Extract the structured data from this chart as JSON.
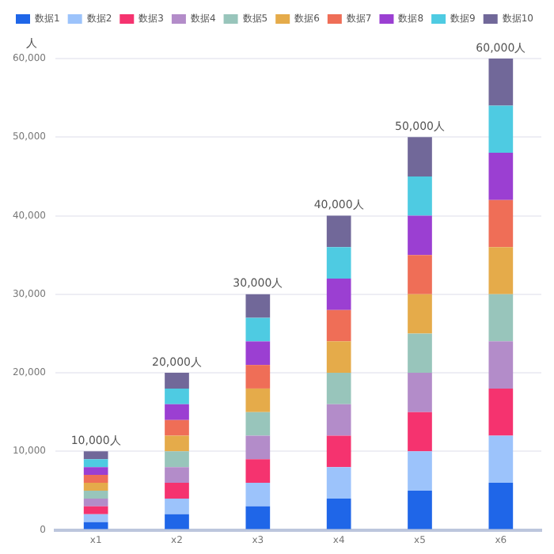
{
  "chart_data": {
    "type": "bar",
    "stacked": true,
    "ylabel": "人",
    "categories": [
      "x1",
      "x2",
      "x3",
      "x4",
      "x5",
      "x6"
    ],
    "series": [
      {
        "name": "数据1",
        "color": "#1f66e8",
        "values": [
          1000,
          2000,
          3000,
          4000,
          5000,
          6000
        ]
      },
      {
        "name": "数据2",
        "color": "#9cc3fb",
        "values": [
          1000,
          2000,
          3000,
          4000,
          5000,
          6000
        ]
      },
      {
        "name": "数据3",
        "color": "#f5336f",
        "values": [
          1000,
          2000,
          3000,
          4000,
          5000,
          6000
        ]
      },
      {
        "name": "数据4",
        "color": "#b38cc9",
        "values": [
          1000,
          2000,
          3000,
          4000,
          5000,
          6000
        ]
      },
      {
        "name": "数据5",
        "color": "#98c5bb",
        "values": [
          1000,
          2000,
          3000,
          4000,
          5000,
          6000
        ]
      },
      {
        "name": "数据6",
        "color": "#e5ab4a",
        "values": [
          1000,
          2000,
          3000,
          4000,
          5000,
          6000
        ]
      },
      {
        "name": "数据7",
        "color": "#ef6e57",
        "values": [
          1000,
          2000,
          3000,
          4000,
          5000,
          6000
        ]
      },
      {
        "name": "数据8",
        "color": "#9b3fd2",
        "values": [
          1000,
          2000,
          3000,
          4000,
          5000,
          6000
        ]
      },
      {
        "name": "数据9",
        "color": "#4ecbe2",
        "values": [
          1000,
          2000,
          3000,
          4000,
          5000,
          6000
        ]
      },
      {
        "name": "数据10",
        "color": "#716899",
        "values": [
          1000,
          2000,
          3000,
          4000,
          5000,
          6000
        ]
      }
    ],
    "ylim": [
      0,
      60000
    ],
    "yticks": [
      {
        "value": 0,
        "label": "0"
      },
      {
        "value": 10000,
        "label": "10,000"
      },
      {
        "value": 20000,
        "label": "20,000"
      },
      {
        "value": 30000,
        "label": "30,000"
      },
      {
        "value": 40000,
        "label": "40,000"
      },
      {
        "value": 50000,
        "label": "50,000"
      },
      {
        "value": 60000,
        "label": "60,000"
      }
    ],
    "grid": "y",
    "legend": "top right",
    "totals": [
      "10,000人",
      "20,000人",
      "30,000人",
      "40,000人",
      "50,000人",
      "60,000人"
    ]
  }
}
